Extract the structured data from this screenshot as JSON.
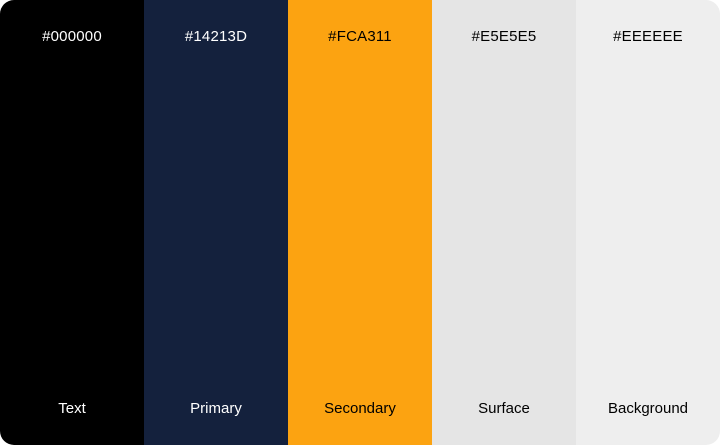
{
  "swatches": [
    {
      "hex": "#000000",
      "name": "Text",
      "color": "#000000",
      "text_color": "#FFFFFF"
    },
    {
      "hex": "#14213D",
      "name": "Primary",
      "color": "#14213D",
      "text_color": "#FFFFFF"
    },
    {
      "hex": "#FCA311",
      "name": "Secondary",
      "color": "#FCA311",
      "text_color": "#000000"
    },
    {
      "hex": "#E5E5E5",
      "name": "Surface",
      "color": "#E5E5E5",
      "text_color": "#000000"
    },
    {
      "hex": "#EEEEEE",
      "name": "Background",
      "color": "#EEEEEE",
      "text_color": "#000000"
    }
  ]
}
